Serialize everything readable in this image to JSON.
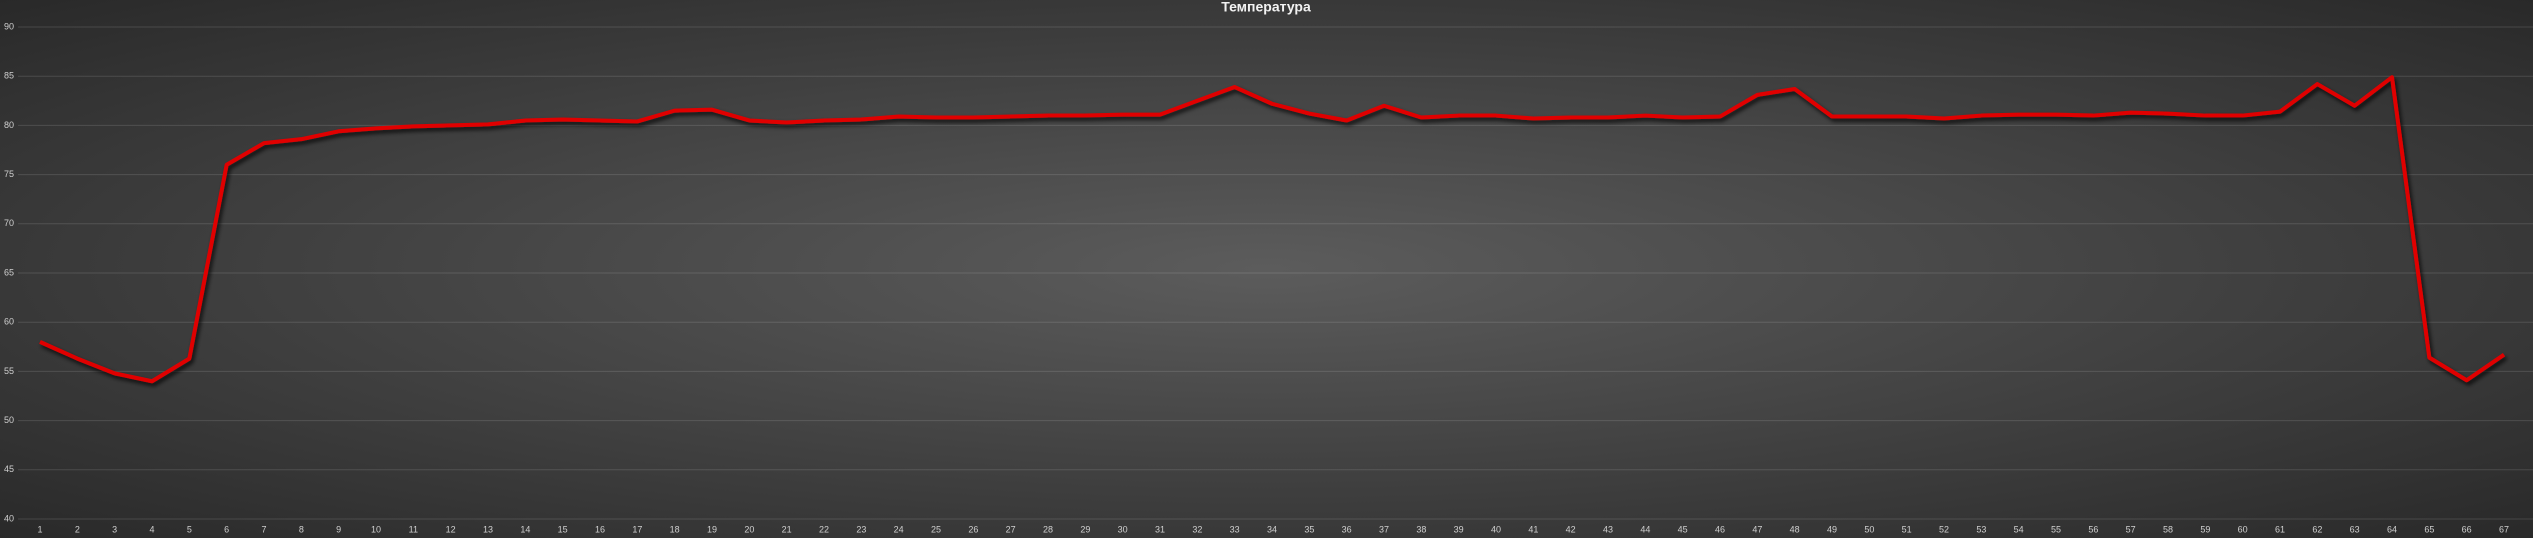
{
  "chart_data": {
    "type": "line",
    "title": "Температура",
    "categories": [
      "1",
      "2",
      "3",
      "4",
      "5",
      "6",
      "7",
      "8",
      "9",
      "10",
      "11",
      "12",
      "13",
      "14",
      "15",
      "16",
      "17",
      "18",
      "19",
      "20",
      "21",
      "22",
      "23",
      "24",
      "25",
      "26",
      "27",
      "28",
      "29",
      "30",
      "31",
      "32",
      "33",
      "34",
      "35",
      "36",
      "37",
      "38",
      "39",
      "40",
      "41",
      "42",
      "43",
      "44",
      "45",
      "46",
      "47",
      "48",
      "49",
      "50",
      "51",
      "52",
      "53",
      "54",
      "55",
      "56",
      "57",
      "58",
      "59",
      "60",
      "61",
      "62",
      "63",
      "64",
      "65",
      "66",
      "67"
    ],
    "series": [
      {
        "name": "Температура",
        "color": "#e00000",
        "values": [
          58,
          56.3,
          54.8,
          54,
          56.3,
          76,
          78.2,
          78.6,
          79.4,
          79.7,
          79.9,
          80,
          80.1,
          80.5,
          80.6,
          80.5,
          80.4,
          81.5,
          81.6,
          80.5,
          80.3,
          80.5,
          80.6,
          80.9,
          80.8,
          80.8,
          80.9,
          81,
          81,
          81.1,
          81.1,
          82.5,
          83.9,
          82.2,
          81.2,
          80.5,
          82,
          80.8,
          81,
          81,
          80.7,
          80.8,
          80.8,
          81,
          80.8,
          80.9,
          83.1,
          83.7,
          80.9,
          80.9,
          80.9,
          80.7,
          81,
          81.1,
          81.1,
          81,
          81.3,
          81.2,
          81,
          81,
          81.4,
          84.2,
          82,
          84.9,
          56.4,
          54.1,
          56.7
        ]
      }
    ],
    "ylim": [
      40,
      90
    ],
    "yticks": [
      40,
      45,
      50,
      55,
      60,
      65,
      70,
      75,
      80,
      85,
      90
    ],
    "grid": true
  }
}
